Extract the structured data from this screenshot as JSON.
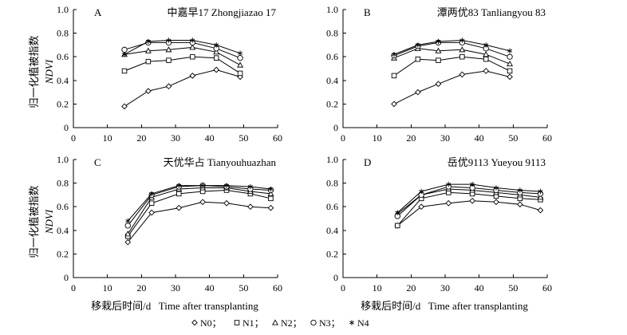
{
  "shared": {
    "ylabel_cn": "归一化植被指数",
    "ylabel_en": "NDVI",
    "xlabel": "移栽后时间/d   Time after transplanting",
    "legend": [
      "N0；",
      "N1；",
      "N2；",
      "N3；",
      "N4"
    ]
  },
  "chart_data": [
    {
      "type": "line",
      "panel": "A",
      "title": "中嘉早17   Zhongjiazao 17",
      "xlim": [
        0,
        60
      ],
      "ylim": [
        0,
        1.0
      ],
      "xticks": [
        0,
        10,
        20,
        30,
        40,
        50,
        60
      ],
      "yticks": [
        0,
        0.2,
        0.4,
        0.6,
        0.8,
        1.0
      ],
      "ytick_labels": [
        "0",
        "0.2",
        "0.4",
        "0.6",
        "0.8",
        "1.0"
      ],
      "x": [
        15,
        22,
        28,
        35,
        42,
        49
      ],
      "series": [
        {
          "name": "N0",
          "marker": "diamond",
          "values": [
            0.18,
            0.31,
            0.35,
            0.44,
            0.49,
            0.43
          ]
        },
        {
          "name": "N1",
          "marker": "square",
          "values": [
            0.48,
            0.56,
            0.57,
            0.6,
            0.59,
            0.46
          ]
        },
        {
          "name": "N2",
          "marker": "triangle",
          "values": [
            0.62,
            0.65,
            0.66,
            0.68,
            0.64,
            0.53
          ]
        },
        {
          "name": "N3",
          "marker": "circle",
          "values": [
            0.66,
            0.72,
            0.72,
            0.72,
            0.67,
            0.59
          ]
        },
        {
          "name": "N4",
          "marker": "star",
          "values": [
            0.62,
            0.73,
            0.74,
            0.74,
            0.7,
            0.63
          ]
        }
      ]
    },
    {
      "type": "line",
      "panel": "B",
      "title": "潭两优83   Tanliangyou 83",
      "xlim": [
        0,
        60
      ],
      "ylim": [
        0,
        1.0
      ],
      "xticks": [
        0,
        10,
        20,
        30,
        40,
        50,
        60
      ],
      "yticks": [
        0,
        0.2,
        0.4,
        0.6,
        0.8,
        1.0
      ],
      "ytick_labels": [
        "0",
        "0.2",
        "0.4",
        "0.6",
        "0.8",
        "1.0"
      ],
      "x": [
        15,
        22,
        28,
        35,
        42,
        49
      ],
      "series": [
        {
          "name": "N0",
          "marker": "diamond",
          "values": [
            0.2,
            0.3,
            0.37,
            0.45,
            0.48,
            0.43
          ]
        },
        {
          "name": "N1",
          "marker": "square",
          "values": [
            0.44,
            0.58,
            0.57,
            0.6,
            0.58,
            0.48
          ]
        },
        {
          "name": "N2",
          "marker": "triangle",
          "values": [
            0.59,
            0.67,
            0.65,
            0.66,
            0.62,
            0.54
          ]
        },
        {
          "name": "N3",
          "marker": "circle",
          "values": [
            0.61,
            0.69,
            0.72,
            0.72,
            0.67,
            0.6
          ]
        },
        {
          "name": "N4",
          "marker": "star",
          "values": [
            0.62,
            0.7,
            0.73,
            0.74,
            0.7,
            0.65
          ]
        }
      ]
    },
    {
      "type": "line",
      "panel": "C",
      "title": "天优华占 Tianyouhuazhan",
      "xlim": [
        0,
        60
      ],
      "ylim": [
        0,
        1.0
      ],
      "xticks": [
        0,
        10,
        20,
        30,
        40,
        50,
        60
      ],
      "yticks": [
        0,
        0.2,
        0.4,
        0.6,
        0.8,
        1.0
      ],
      "ytick_labels": [
        "0",
        "0.2",
        "0.4",
        "0.6",
        "0.8",
        "1.0"
      ],
      "x": [
        16,
        23,
        31,
        38,
        45,
        52,
        58
      ],
      "series": [
        {
          "name": "N0",
          "marker": "diamond",
          "values": [
            0.3,
            0.55,
            0.59,
            0.64,
            0.63,
            0.6,
            0.59
          ]
        },
        {
          "name": "N1",
          "marker": "square",
          "values": [
            0.35,
            0.63,
            0.71,
            0.73,
            0.74,
            0.71,
            0.67
          ]
        },
        {
          "name": "N2",
          "marker": "triangle",
          "values": [
            0.37,
            0.68,
            0.75,
            0.76,
            0.76,
            0.73,
            0.71
          ]
        },
        {
          "name": "N3",
          "marker": "circle",
          "values": [
            0.44,
            0.7,
            0.77,
            0.78,
            0.77,
            0.75,
            0.74
          ]
        },
        {
          "name": "N4",
          "marker": "star",
          "values": [
            0.48,
            0.71,
            0.78,
            0.78,
            0.78,
            0.77,
            0.75
          ]
        }
      ]
    },
    {
      "type": "line",
      "panel": "D",
      "title": "岳优9113   Yueyou 9113",
      "xlim": [
        0,
        60
      ],
      "ylim": [
        0,
        1.0
      ],
      "xticks": [
        0,
        10,
        20,
        30,
        40,
        50,
        60
      ],
      "yticks": [
        0,
        0.2,
        0.4,
        0.6,
        0.8,
        1.0
      ],
      "ytick_labels": [
        "0",
        "0.2",
        "0.4",
        "0.6",
        "0.8",
        "1.0"
      ],
      "x": [
        16,
        23,
        31,
        38,
        45,
        52,
        58
      ],
      "series": [
        {
          "name": "N0",
          "marker": "diamond",
          "values": [
            0.44,
            0.6,
            0.63,
            0.65,
            0.64,
            0.62,
            0.57
          ]
        },
        {
          "name": "N1",
          "marker": "square",
          "values": [
            0.44,
            0.67,
            0.72,
            0.71,
            0.69,
            0.67,
            0.66
          ]
        },
        {
          "name": "N2",
          "marker": "triangle",
          "values": [
            0.54,
            0.7,
            0.75,
            0.74,
            0.72,
            0.7,
            0.68
          ]
        },
        {
          "name": "N3",
          "marker": "circle",
          "values": [
            0.52,
            0.7,
            0.77,
            0.76,
            0.74,
            0.72,
            0.71
          ]
        },
        {
          "name": "N4",
          "marker": "star",
          "values": [
            0.55,
            0.73,
            0.79,
            0.79,
            0.76,
            0.74,
            0.73
          ]
        }
      ]
    }
  ]
}
